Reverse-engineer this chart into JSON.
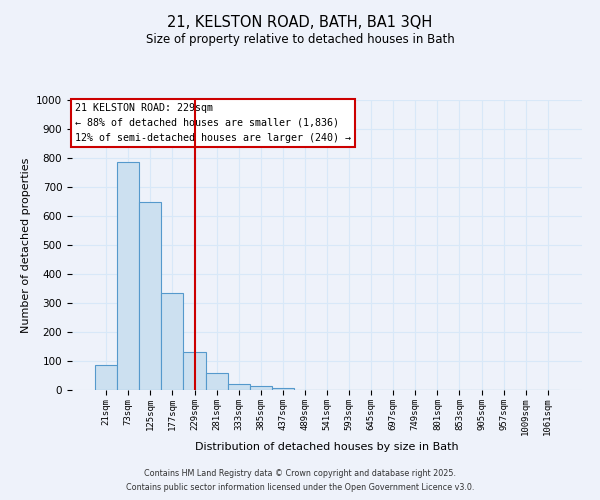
{
  "title": "21, KELSTON ROAD, BATH, BA1 3QH",
  "subtitle": "Size of property relative to detached houses in Bath",
  "xlabel": "Distribution of detached houses by size in Bath",
  "ylabel": "Number of detached properties",
  "bar_labels": [
    "21sqm",
    "73sqm",
    "125sqm",
    "177sqm",
    "229sqm",
    "281sqm",
    "333sqm",
    "385sqm",
    "437sqm",
    "489sqm",
    "541sqm",
    "593sqm",
    "645sqm",
    "697sqm",
    "749sqm",
    "801sqm",
    "853sqm",
    "905sqm",
    "957sqm",
    "1009sqm",
    "1061sqm"
  ],
  "bar_values": [
    85,
    785,
    648,
    335,
    130,
    57,
    22,
    15,
    7,
    0,
    0,
    0,
    0,
    0,
    0,
    0,
    0,
    0,
    0,
    0,
    0
  ],
  "bar_color": "#cce0f0",
  "bar_edge_color": "#5599cc",
  "vline_x": 4,
  "vline_color": "#cc0000",
  "annotation_line1": "21 KELSTON ROAD: 229sqm",
  "annotation_line2": "← 88% of detached houses are smaller (1,836)",
  "annotation_line3": "12% of semi-detached houses are larger (240) →",
  "ylim": [
    0,
    1000
  ],
  "yticks": [
    0,
    100,
    200,
    300,
    400,
    500,
    600,
    700,
    800,
    900,
    1000
  ],
  "grid_color": "#d8e8f8",
  "background_color": "#eef2fa",
  "footer_line1": "Contains HM Land Registry data © Crown copyright and database right 2025.",
  "footer_line2": "Contains public sector information licensed under the Open Government Licence v3.0."
}
